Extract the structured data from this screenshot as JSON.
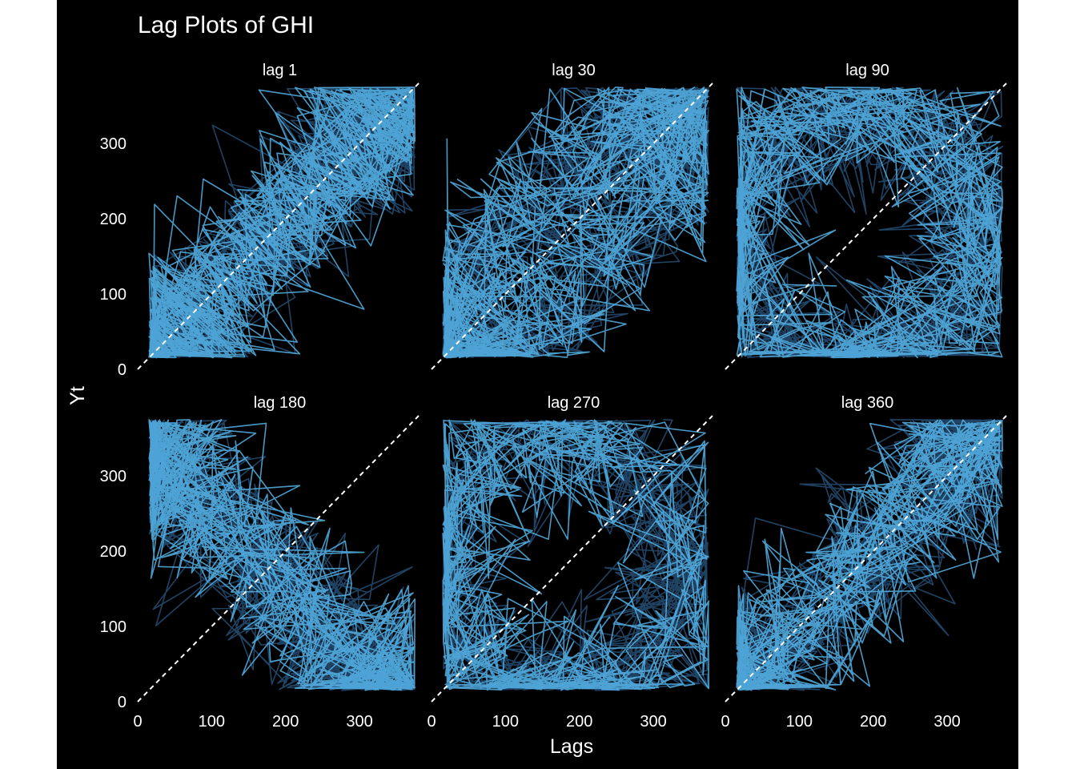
{
  "chart_data": {
    "type": "line",
    "title": "Lag Plots of GHI",
    "xlabel": "Lags",
    "ylabel": "Yt",
    "xlim": [
      0,
      380
    ],
    "ylim": [
      0,
      380
    ],
    "x_ticks": [
      0,
      100,
      200,
      300
    ],
    "y_ticks": [
      0,
      100,
      200,
      300
    ],
    "tick_labels": [
      "0",
      "100",
      "200",
      "300"
    ],
    "reference_line": "y = x (dashed)",
    "grid": false,
    "background": "#000000",
    "colors": {
      "line_light": "#56B4E9",
      "line_dark": "#2B5A85",
      "reference": "#ffffff",
      "text": "#ffffff"
    },
    "panels": [
      {
        "label": "lag 1",
        "lag": 1
      },
      {
        "label": "lag 30",
        "lag": 30
      },
      {
        "label": "lag 90",
        "lag": 90
      },
      {
        "label": "lag 180",
        "lag": 180
      },
      {
        "label": "lag 270",
        "lag": 270
      },
      {
        "label": "lag 360",
        "lag": 360
      }
    ]
  }
}
